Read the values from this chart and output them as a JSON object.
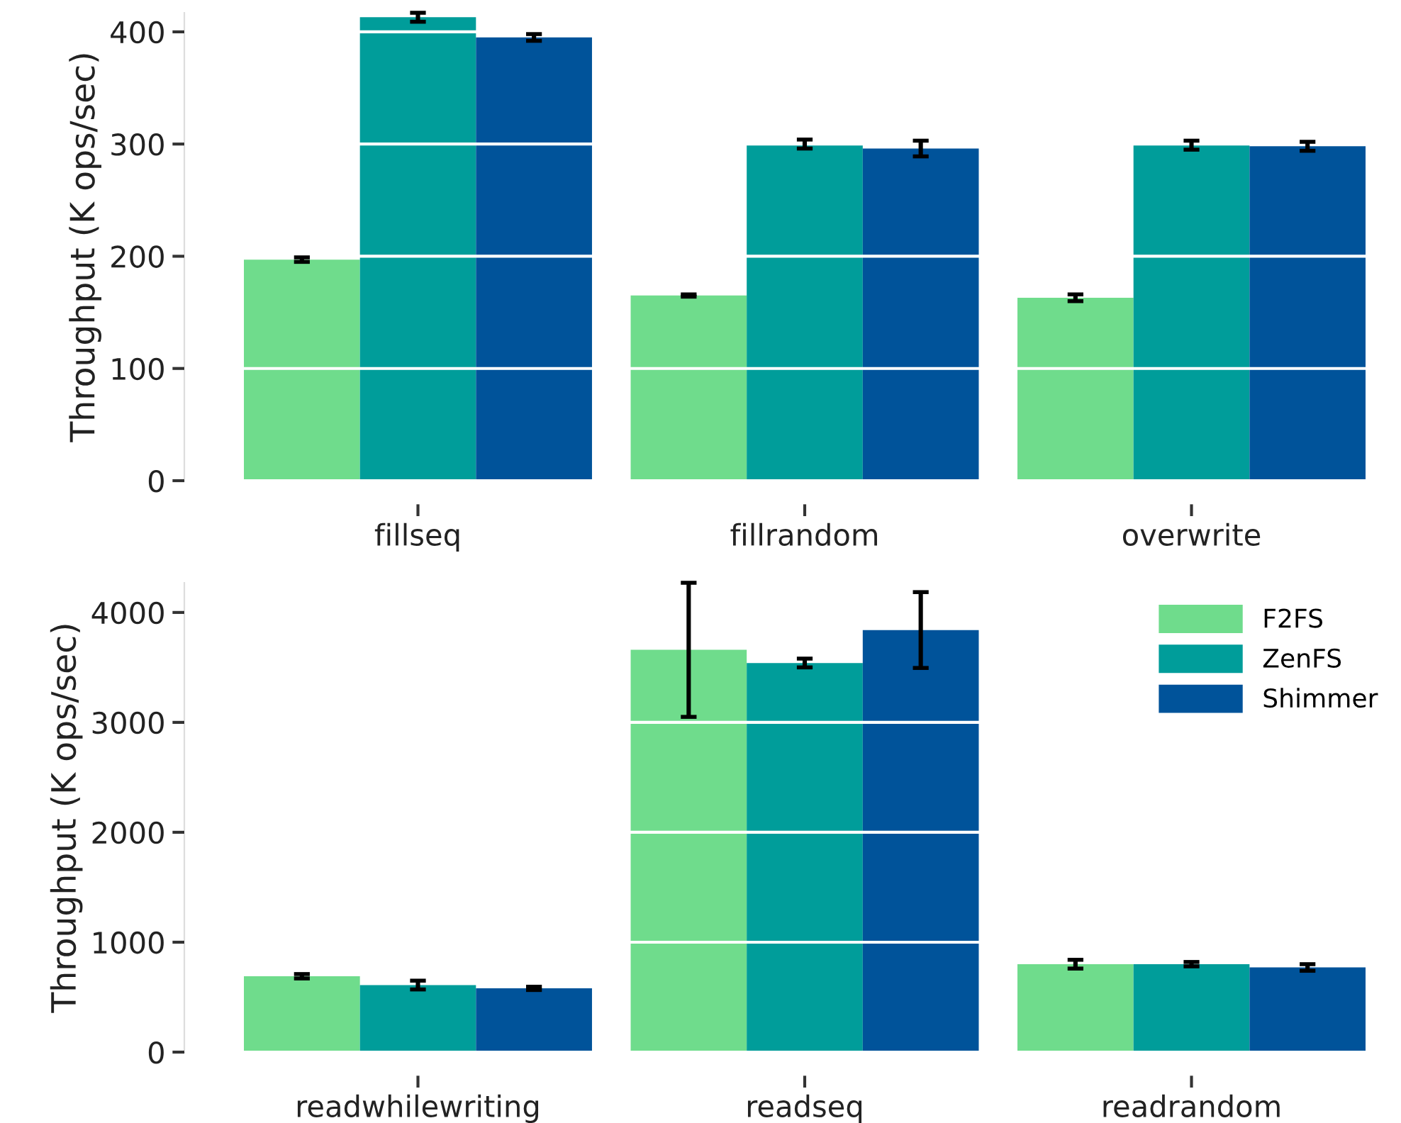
{
  "chart_data": [
    {
      "type": "bar",
      "categories": [
        "fillseq",
        "fillrandom",
        "overwrite"
      ],
      "ylabel": "Throughput (K ops/sec)",
      "ylim": [
        0,
        417
      ],
      "yticks": [
        0,
        100,
        200,
        300,
        400
      ],
      "grid": "y",
      "series": [
        {
          "color": "#6fdc8c",
          "values": [
            197,
            165,
            163
          ],
          "errors": [
            2,
            1,
            3
          ]
        },
        {
          "color": "#009d9a",
          "values": [
            413,
            300,
            299
          ],
          "errors": [
            4,
            4,
            4
          ]
        },
        {
          "color": "#00539a",
          "values": [
            395,
            296,
            298
          ],
          "errors": [
            3,
            7,
            4
          ]
        }
      ]
    },
    {
      "type": "bar",
      "categories": [
        "readwhilewriting",
        "readseq",
        "readrandom"
      ],
      "ylabel": "Throughput (K ops/sec)",
      "ylim": [
        0,
        4270
      ],
      "yticks": [
        0,
        1000,
        2000,
        3000,
        4000
      ],
      "grid": "y",
      "legend": "top right",
      "series": [
        {
          "name": "F2FS",
          "color": "#6fdc8c",
          "values": [
            690,
            3660,
            800
          ],
          "errors": [
            20,
            610,
            40
          ]
        },
        {
          "name": "ZenFS",
          "color": "#009d9a",
          "values": [
            610,
            3540,
            800
          ],
          "errors": [
            40,
            40,
            20
          ]
        },
        {
          "name": "Shimmer",
          "color": "#00539a",
          "values": [
            580,
            3840,
            770
          ],
          "errors": [
            15,
            345,
            30
          ]
        }
      ]
    }
  ]
}
